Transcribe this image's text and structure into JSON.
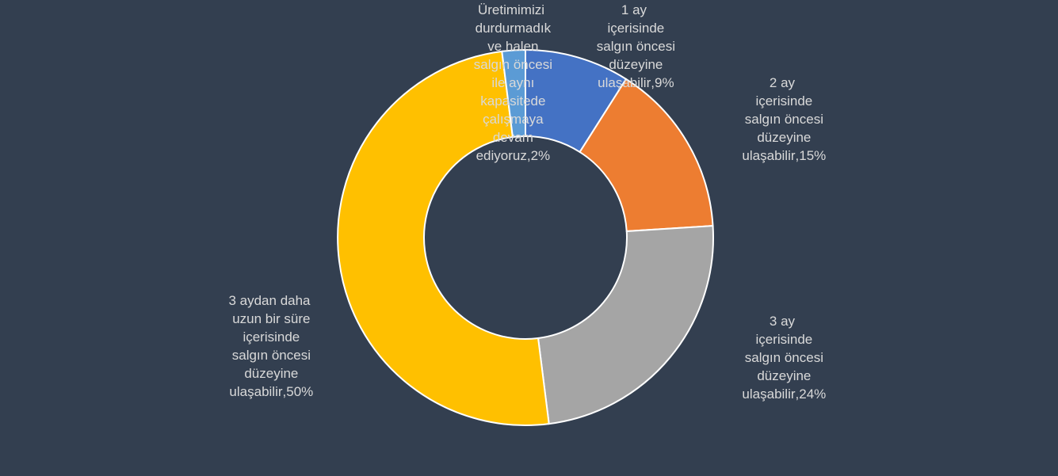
{
  "chart_data": {
    "type": "pie",
    "categories": [
      "1 ay içerisinde salgın öncesi düzeyine ulaşabilir",
      "2 ay içerisinde salgın öncesi düzeyine ulaşabilir",
      "3 ay içerisinde salgın öncesi düzeyine ulaşabilir",
      "3 aydan daha uzun bir süre içerisinde salgın öncesi düzeyine ulaşabilir",
      "Üretimimizi durdurmadık ve halen salgın öncesi ile aynı kapasitede çalışmaya devam ediyoruz"
    ],
    "values": [
      9,
      15,
      24,
      50,
      2
    ],
    "value_labels": [
      "9%",
      "15%",
      "24%",
      "50%",
      "2%"
    ],
    "label_separator": ",",
    "colors": [
      "#4472c4",
      "#ed7d31",
      "#a5a5a5",
      "#ffc000",
      "#5b9bd5"
    ],
    "donut": true
  }
}
